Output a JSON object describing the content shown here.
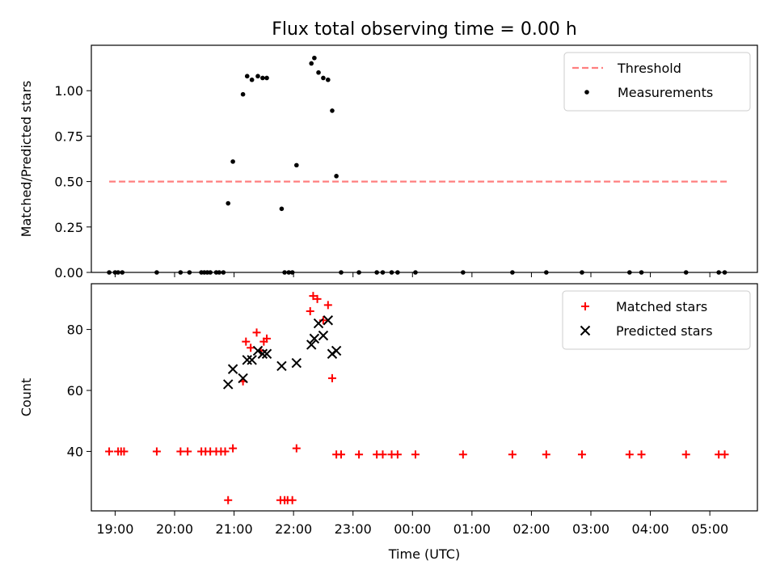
{
  "figure": {
    "title": "Flux total observing time = 0.00 h"
  },
  "chart_data": [
    {
      "type": "scatter",
      "panel": "top",
      "title": "Flux total observing time = 0.00 h",
      "xlabel": "",
      "ylabel": "Matched/Predicted stars",
      "x_unit": "hours since 18:00 UTC",
      "xlim": [
        18.6,
        29.8
      ],
      "ylim": [
        0,
        1.25
      ],
      "yticks": [
        0.0,
        0.25,
        0.5,
        0.75,
        1.0
      ],
      "ytick_labels": [
        "0.00",
        "0.25",
        "0.50",
        "0.75",
        "1.00"
      ],
      "grid": false,
      "legend_position": "top-right",
      "series": [
        {
          "name": "Threshold",
          "kind": "line",
          "style": "dashed",
          "color": "#ff7f7f",
          "points": [
            [
              18.9,
              0.5
            ],
            [
              29.3,
              0.5
            ]
          ]
        },
        {
          "name": "Measurements",
          "kind": "scatter",
          "marker": "dot",
          "color": "#000000",
          "points": [
            [
              18.9,
              0
            ],
            [
              19.0,
              0
            ],
            [
              19.05,
              0
            ],
            [
              19.12,
              0
            ],
            [
              19.7,
              0
            ],
            [
              20.1,
              0
            ],
            [
              20.25,
              0
            ],
            [
              20.45,
              0
            ],
            [
              20.5,
              0
            ],
            [
              20.55,
              0
            ],
            [
              20.6,
              0
            ],
            [
              20.7,
              0
            ],
            [
              20.75,
              0
            ],
            [
              20.82,
              0
            ],
            [
              20.9,
              0.38
            ],
            [
              20.98,
              0.61
            ],
            [
              21.15,
              0.98
            ],
            [
              21.22,
              1.08
            ],
            [
              21.3,
              1.06
            ],
            [
              21.4,
              1.08
            ],
            [
              21.48,
              1.07
            ],
            [
              21.55,
              1.07
            ],
            [
              21.8,
              0.35
            ],
            [
              21.85,
              0
            ],
            [
              21.92,
              0
            ],
            [
              21.98,
              0
            ],
            [
              22.05,
              0.59
            ],
            [
              22.3,
              1.15
            ],
            [
              22.35,
              1.18
            ],
            [
              22.42,
              1.1
            ],
            [
              22.5,
              1.07
            ],
            [
              22.58,
              1.06
            ],
            [
              22.65,
              0.89
            ],
            [
              22.72,
              0.53
            ],
            [
              22.8,
              0
            ],
            [
              23.1,
              0
            ],
            [
              23.4,
              0
            ],
            [
              23.5,
              0
            ],
            [
              23.65,
              0
            ],
            [
              23.75,
              0
            ],
            [
              24.05,
              0
            ],
            [
              24.85,
              0
            ],
            [
              25.68,
              0
            ],
            [
              26.25,
              0
            ],
            [
              26.85,
              0
            ],
            [
              27.65,
              0
            ],
            [
              27.85,
              0
            ],
            [
              28.6,
              0
            ],
            [
              29.15,
              0
            ],
            [
              29.25,
              0
            ]
          ]
        }
      ]
    },
    {
      "type": "scatter",
      "panel": "bottom",
      "title": "",
      "xlabel": "Time (UTC)",
      "ylabel": "Count",
      "x_unit": "hours since 18:00 UTC",
      "xlim": [
        18.6,
        29.8
      ],
      "ylim": [
        20.5,
        95
      ],
      "yticks": [
        40,
        60,
        80
      ],
      "ytick_labels": [
        "40",
        "60",
        "80"
      ],
      "xticks": [
        19,
        20,
        21,
        22,
        23,
        24,
        25,
        26,
        27,
        28,
        29
      ],
      "xtick_labels": [
        "19:00",
        "20:00",
        "21:00",
        "22:00",
        "23:00",
        "00:00",
        "01:00",
        "02:00",
        "03:00",
        "04:00",
        "05:00"
      ],
      "grid": false,
      "legend_position": "top-right",
      "series": [
        {
          "name": "Matched stars",
          "kind": "scatter",
          "marker": "plus",
          "color": "#ff0000",
          "points": [
            [
              18.9,
              40
            ],
            [
              19.05,
              40
            ],
            [
              19.1,
              40
            ],
            [
              19.15,
              40
            ],
            [
              19.7,
              40
            ],
            [
              20.1,
              40
            ],
            [
              20.22,
              40
            ],
            [
              20.45,
              40
            ],
            [
              20.52,
              40
            ],
            [
              20.6,
              40
            ],
            [
              20.7,
              40
            ],
            [
              20.78,
              40
            ],
            [
              20.85,
              40
            ],
            [
              20.9,
              24
            ],
            [
              20.98,
              41
            ],
            [
              21.15,
              63
            ],
            [
              21.2,
              76
            ],
            [
              21.28,
              74
            ],
            [
              21.38,
              79
            ],
            [
              21.45,
              73
            ],
            [
              21.5,
              76
            ],
            [
              21.55,
              77
            ],
            [
              21.78,
              24
            ],
            [
              21.85,
              24
            ],
            [
              21.9,
              24
            ],
            [
              21.98,
              24
            ],
            [
              22.05,
              41
            ],
            [
              22.28,
              86
            ],
            [
              22.33,
              91
            ],
            [
              22.4,
              90
            ],
            [
              22.5,
              83
            ],
            [
              22.58,
              88
            ],
            [
              22.65,
              64
            ],
            [
              22.72,
              39
            ],
            [
              22.8,
              39
            ],
            [
              23.1,
              39
            ],
            [
              23.4,
              39
            ],
            [
              23.5,
              39
            ],
            [
              23.65,
              39
            ],
            [
              23.75,
              39
            ],
            [
              24.05,
              39
            ],
            [
              24.85,
              39
            ],
            [
              25.68,
              39
            ],
            [
              26.25,
              39
            ],
            [
              26.85,
              39
            ],
            [
              27.65,
              39
            ],
            [
              27.85,
              39
            ],
            [
              28.6,
              39
            ],
            [
              29.15,
              39
            ],
            [
              29.25,
              39
            ]
          ]
        },
        {
          "name": "Predicted stars",
          "kind": "scatter",
          "marker": "x",
          "color": "#000000",
          "points": [
            [
              20.9,
              62
            ],
            [
              20.98,
              67
            ],
            [
              21.15,
              64
            ],
            [
              21.22,
              70
            ],
            [
              21.3,
              70
            ],
            [
              21.4,
              73
            ],
            [
              21.48,
              72
            ],
            [
              21.55,
              72
            ],
            [
              21.8,
              68
            ],
            [
              22.05,
              69
            ],
            [
              22.3,
              75
            ],
            [
              22.35,
              77
            ],
            [
              22.42,
              82
            ],
            [
              22.5,
              78
            ],
            [
              22.58,
              83
            ],
            [
              22.65,
              72
            ],
            [
              22.72,
              73
            ]
          ]
        }
      ]
    }
  ]
}
